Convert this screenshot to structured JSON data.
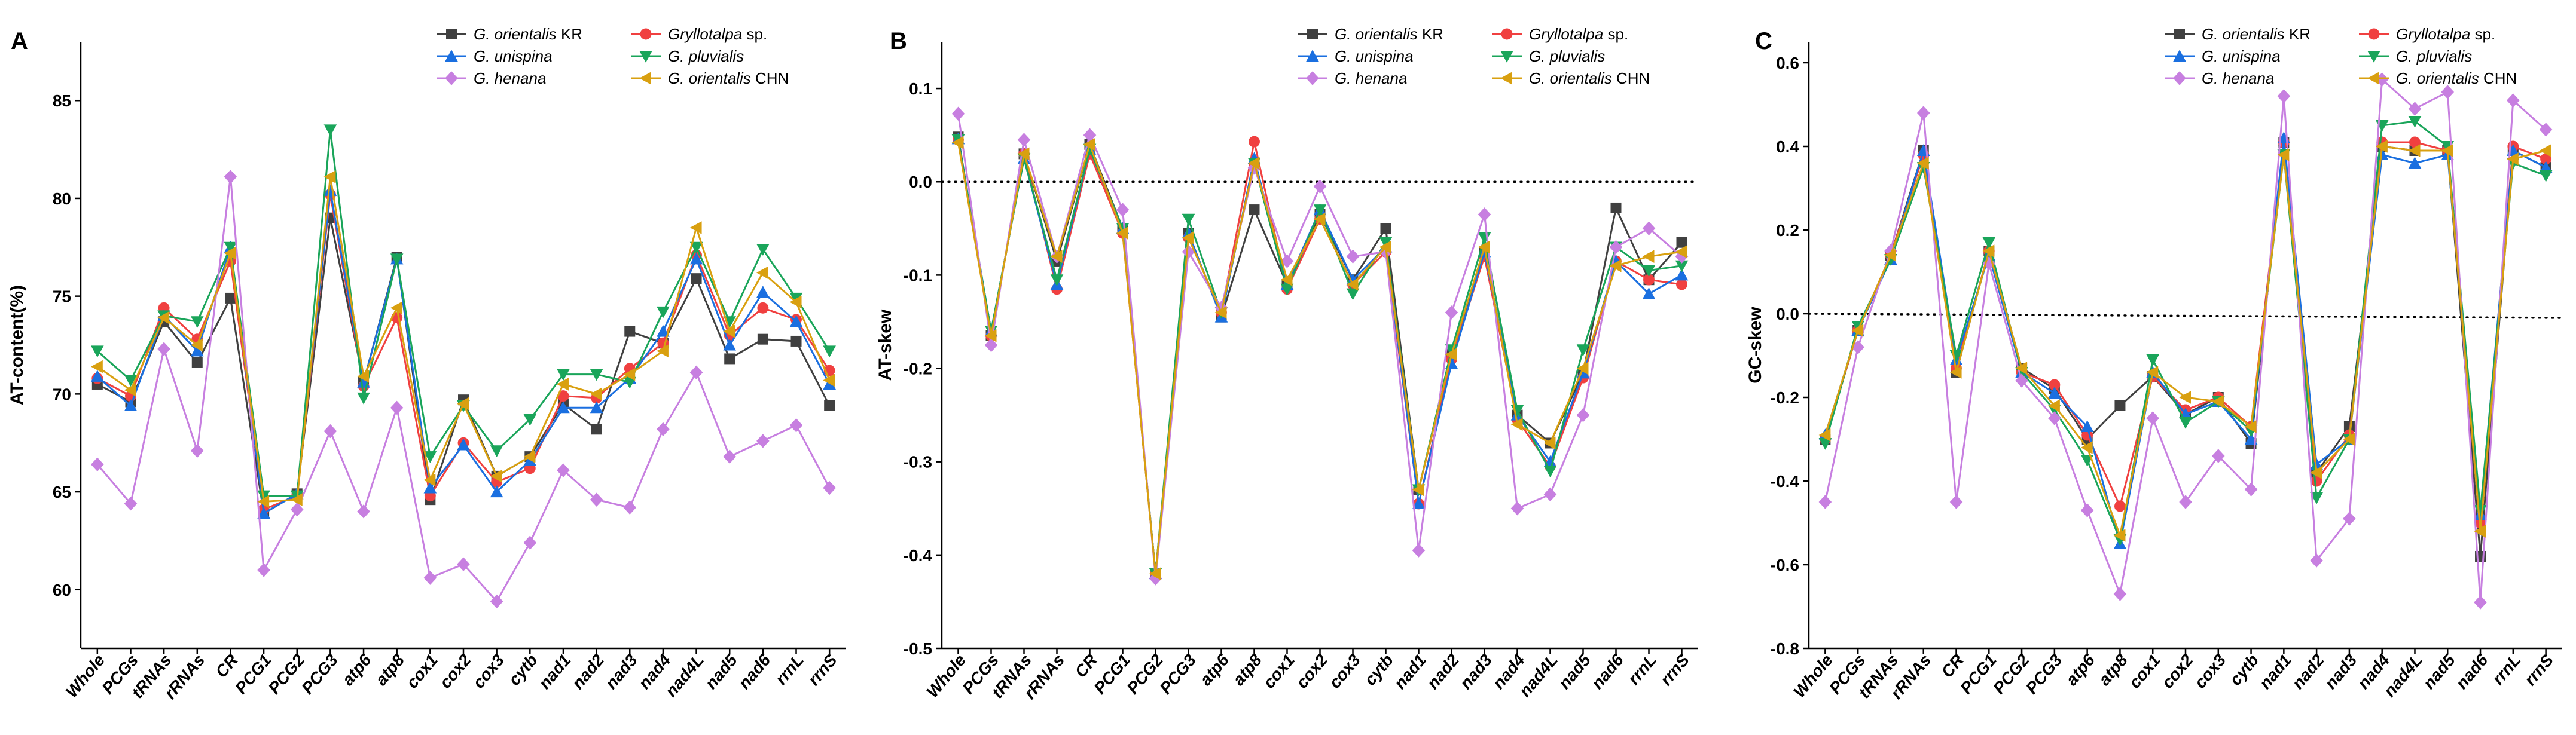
{
  "chart_data": [
    {
      "type": "line",
      "panel_label": "A",
      "title": "",
      "ylabel": "AT-content(%)",
      "xlabel": "",
      "ylim": [
        57,
        88
      ],
      "yticks": [
        60,
        65,
        70,
        75,
        80,
        85
      ],
      "ytick_labels": [
        "60",
        "65",
        "70",
        "75",
        "80",
        "85"
      ],
      "reference_line": null,
      "grid": false,
      "legend_position": "top-right",
      "categories": [
        "Whole",
        "PCGs",
        "tRNAs",
        "rRNAs",
        "CR",
        "PCG1",
        "PCG2",
        "PCG3",
        "atp6",
        "atp8",
        "cox1",
        "cox2",
        "cox3",
        "cytb",
        "nad1",
        "nad2",
        "nad3",
        "nad4",
        "nad4L",
        "nad5",
        "nad6",
        "rrnL",
        "rrnS"
      ],
      "series": [
        {
          "name": "G. orientalis KR",
          "legend_text": "G. orientalis",
          "legend_suffix": " KR",
          "color": "#404040",
          "marker": "square",
          "values": [
            70.5,
            69.6,
            73.7,
            71.6,
            74.9,
            63.9,
            64.9,
            79.0,
            70.6,
            77.0,
            64.6,
            69.7,
            65.8,
            66.8,
            69.5,
            68.2,
            73.2,
            72.6,
            75.9,
            71.8,
            72.8,
            72.7,
            69.4
          ]
        },
        {
          "name": "Gryllotalpa sp.",
          "legend_text": "Gryllotalpa",
          "legend_suffix": " sp.",
          "color": "#f04040",
          "marker": "circle",
          "values": [
            70.8,
            69.9,
            74.4,
            72.8,
            76.8,
            64.1,
            64.8,
            80.2,
            70.4,
            73.9,
            64.8,
            67.5,
            65.5,
            66.2,
            69.9,
            69.8,
            71.3,
            72.6,
            77.1,
            73.0,
            74.4,
            73.8,
            71.2
          ]
        },
        {
          "name": "G. unispina",
          "legend_text": "G. unispina",
          "legend_suffix": "",
          "color": "#1a6fe0",
          "marker": "triangle-up",
          "values": [
            70.9,
            69.4,
            74.0,
            72.2,
            77.5,
            63.9,
            64.9,
            80.4,
            70.6,
            76.9,
            65.2,
            67.4,
            65.0,
            66.6,
            69.3,
            69.3,
            70.8,
            73.2,
            76.9,
            72.5,
            75.2,
            73.7,
            70.5
          ]
        },
        {
          "name": "G. pluvialis",
          "legend_text": "G. pluvialis",
          "legend_suffix": "",
          "color": "#1aa55a",
          "marker": "triangle-down",
          "values": [
            72.2,
            70.7,
            74.0,
            73.7,
            77.5,
            64.8,
            64.8,
            83.5,
            69.8,
            76.9,
            66.8,
            69.4,
            67.1,
            68.7,
            71.0,
            71.0,
            70.6,
            74.2,
            77.5,
            73.7,
            77.4,
            74.9,
            72.2
          ]
        },
        {
          "name": "G. henana",
          "legend_text": "G. henana",
          "legend_suffix": "",
          "color": "#c77fe0",
          "marker": "diamond",
          "values": [
            66.4,
            64.4,
            72.3,
            67.1,
            81.1,
            61.0,
            64.1,
            68.1,
            64.0,
            69.3,
            60.6,
            61.3,
            59.4,
            62.4,
            66.1,
            64.6,
            64.2,
            68.2,
            71.1,
            66.8,
            67.6,
            68.4,
            65.2
          ]
        },
        {
          "name": "G. orientalis CHN",
          "legend_text": "G. orientalis",
          "legend_suffix": " CHN",
          "color": "#d9a010",
          "marker": "triangle-left",
          "values": [
            71.4,
            70.2,
            73.9,
            72.5,
            77.2,
            64.5,
            64.6,
            81.1,
            70.9,
            74.4,
            65.6,
            69.5,
            65.8,
            66.8,
            70.5,
            70.0,
            71.0,
            72.2,
            78.5,
            73.2,
            76.2,
            74.7,
            70.7
          ]
        }
      ]
    },
    {
      "type": "line",
      "panel_label": "B",
      "title": "",
      "ylabel": "AT-skew",
      "xlabel": "",
      "ylim": [
        -0.5,
        0.15
      ],
      "yticks": [
        -0.5,
        -0.4,
        -0.3,
        -0.2,
        -0.1,
        0.0,
        0.1
      ],
      "ytick_labels": [
        "-0.5",
        "-0.4",
        "-0.3",
        "-0.2",
        "-0.1",
        "0.0",
        "0.1"
      ],
      "reference_line": 0.0,
      "grid": false,
      "legend_position": "top-right",
      "categories": [
        "Whole",
        "PCGs",
        "tRNAs",
        "rRNAs",
        "CR",
        "PCG1",
        "PCG2",
        "PCG3",
        "atp6",
        "atp8",
        "cox1",
        "cox2",
        "cox3",
        "cytb",
        "nad1",
        "nad2",
        "nad3",
        "nad4",
        "nad4L",
        "nad5",
        "nad6",
        "rrnL",
        "rrnS"
      ],
      "series": [
        {
          "name": "G. orientalis KR",
          "legend_text": "G. orientalis",
          "legend_suffix": " KR",
          "color": "#404040",
          "marker": "square",
          "values": [
            0.048,
            -0.165,
            0.03,
            -0.085,
            0.04,
            -0.05,
            -0.42,
            -0.055,
            -0.145,
            -0.03,
            -0.11,
            -0.035,
            -0.105,
            -0.05,
            -0.33,
            -0.185,
            -0.075,
            -0.25,
            -0.28,
            -0.205,
            -0.028,
            -0.105,
            -0.065
          ]
        },
        {
          "name": "Gryllotalpa sp.",
          "legend_text": "Gryllotalpa",
          "legend_suffix": " sp.",
          "color": "#f04040",
          "marker": "circle",
          "values": [
            0.045,
            -0.165,
            0.03,
            -0.115,
            0.03,
            -0.055,
            -0.42,
            -0.06,
            -0.14,
            0.043,
            -0.115,
            -0.04,
            -0.11,
            -0.075,
            -0.345,
            -0.19,
            -0.08,
            -0.255,
            -0.305,
            -0.21,
            -0.085,
            -0.105,
            -0.11
          ]
        },
        {
          "name": "G. unispina",
          "legend_text": "G. unispina",
          "legend_suffix": "",
          "color": "#1a6fe0",
          "marker": "triangle-up",
          "values": [
            0.046,
            -0.16,
            0.025,
            -0.11,
            0.035,
            -0.05,
            -0.42,
            -0.055,
            -0.145,
            0.025,
            -0.11,
            -0.03,
            -0.105,
            -0.07,
            -0.345,
            -0.195,
            -0.075,
            -0.25,
            -0.3,
            -0.205,
            -0.085,
            -0.12,
            -0.1
          ]
        },
        {
          "name": "G. pluvialis",
          "legend_text": "G. pluvialis",
          "legend_suffix": "",
          "color": "#1aa55a",
          "marker": "triangle-down",
          "values": [
            0.045,
            -0.16,
            0.025,
            -0.105,
            0.035,
            -0.05,
            -0.42,
            -0.04,
            -0.14,
            0.02,
            -0.115,
            -0.03,
            -0.12,
            -0.065,
            -0.33,
            -0.18,
            -0.06,
            -0.245,
            -0.31,
            -0.18,
            -0.07,
            -0.095,
            -0.09
          ]
        },
        {
          "name": "G. henana",
          "legend_text": "G. henana",
          "legend_suffix": "",
          "color": "#c77fe0",
          "marker": "diamond",
          "values": [
            0.073,
            -0.175,
            0.045,
            -0.08,
            0.05,
            -0.03,
            -0.425,
            -0.075,
            -0.135,
            0.015,
            -0.085,
            -0.005,
            -0.08,
            -0.075,
            -0.395,
            -0.14,
            -0.035,
            -0.35,
            -0.335,
            -0.25,
            -0.07,
            -0.05,
            -0.08
          ]
        },
        {
          "name": "G. orientalis CHN",
          "legend_text": "G. orientalis",
          "legend_suffix": " CHN",
          "color": "#d9a010",
          "marker": "triangle-left",
          "values": [
            0.042,
            -0.165,
            0.03,
            -0.08,
            0.04,
            -0.055,
            -0.42,
            -0.06,
            -0.14,
            0.02,
            -0.105,
            -0.04,
            -0.11,
            -0.07,
            -0.33,
            -0.185,
            -0.07,
            -0.26,
            -0.28,
            -0.2,
            -0.09,
            -0.08,
            -0.075
          ]
        }
      ]
    },
    {
      "type": "line",
      "panel_label": "C",
      "title": "",
      "ylabel": "GC-skew",
      "xlabel": "",
      "ylim": [
        -0.8,
        0.65
      ],
      "yticks": [
        -0.8,
        -0.6,
        -0.4,
        -0.2,
        0.0,
        0.2,
        0.4,
        0.6
      ],
      "ytick_labels": [
        "-0.8",
        "-0.6",
        "-0.4",
        "-0.2",
        "0.0",
        "0.2",
        "0.4",
        "0.6"
      ],
      "reference_line": 0.0,
      "grid": false,
      "legend_position": "top-right",
      "categories": [
        "Whole",
        "PCGs",
        "tRNAs",
        "rRNAs",
        "CR",
        "PCG1",
        "PCG2",
        "PCG3",
        "atp6",
        "atp8",
        "cox1",
        "cox2",
        "cox3",
        "cytb",
        "nad1",
        "nad2",
        "nad3",
        "nad4",
        "nad4L",
        "nad5",
        "nad6",
        "rrnL",
        "rrnS"
      ],
      "series": [
        {
          "name": "G. orientalis KR",
          "legend_text": "G. orientalis",
          "legend_suffix": " KR",
          "color": "#404040",
          "marker": "square",
          "values": [
            -0.3,
            -0.04,
            0.14,
            0.39,
            -0.14,
            0.15,
            -0.13,
            -0.18,
            -0.3,
            -0.22,
            -0.15,
            -0.24,
            -0.2,
            -0.31,
            0.41,
            -0.38,
            -0.27,
            0.4,
            0.39,
            0.39,
            -0.58,
            0.39,
            0.35
          ]
        },
        {
          "name": "Gryllotalpa sp.",
          "legend_text": "Gryllotalpa",
          "legend_suffix": " sp.",
          "color": "#f04040",
          "marker": "circle",
          "values": [
            -0.3,
            -0.04,
            0.14,
            0.38,
            -0.13,
            0.15,
            -0.14,
            -0.17,
            -0.29,
            -0.46,
            -0.15,
            -0.23,
            -0.2,
            -0.27,
            0.41,
            -0.4,
            -0.29,
            0.41,
            0.41,
            0.39,
            -0.5,
            0.4,
            0.37
          ]
        },
        {
          "name": "G. unispina",
          "legend_text": "G. unispina",
          "legend_suffix": "",
          "color": "#1a6fe0",
          "marker": "triangle-up",
          "values": [
            -0.29,
            -0.04,
            0.13,
            0.39,
            -0.11,
            0.14,
            -0.14,
            -0.19,
            -0.27,
            -0.55,
            -0.14,
            -0.24,
            -0.21,
            -0.3,
            0.42,
            -0.36,
            -0.3,
            0.38,
            0.36,
            0.38,
            -0.48,
            0.39,
            0.35
          ]
        },
        {
          "name": "G. pluvialis",
          "legend_text": "G. pluvialis",
          "legend_suffix": "",
          "color": "#1aa55a",
          "marker": "triangle-down",
          "values": [
            -0.31,
            -0.03,
            0.13,
            0.35,
            -0.1,
            0.17,
            -0.14,
            -0.23,
            -0.35,
            -0.54,
            -0.11,
            -0.26,
            -0.21,
            -0.28,
            0.38,
            -0.44,
            -0.3,
            0.45,
            0.46,
            0.4,
            -0.47,
            0.36,
            0.33
          ]
        },
        {
          "name": "G. henana",
          "legend_text": "G. henana",
          "legend_suffix": "",
          "color": "#c77fe0",
          "marker": "diamond",
          "values": [
            -0.45,
            -0.08,
            0.15,
            0.48,
            -0.45,
            0.12,
            -0.16,
            -0.25,
            -0.47,
            -0.67,
            -0.25,
            -0.45,
            -0.34,
            -0.42,
            0.52,
            -0.59,
            -0.49,
            0.56,
            0.49,
            0.53,
            -0.69,
            0.51,
            0.44
          ]
        },
        {
          "name": "G. orientalis CHN",
          "legend_text": "G. orientalis",
          "legend_suffix": " CHN",
          "color": "#d9a010",
          "marker": "triangle-left",
          "values": [
            -0.29,
            -0.04,
            0.14,
            0.36,
            -0.14,
            0.15,
            -0.13,
            -0.22,
            -0.32,
            -0.53,
            -0.14,
            -0.2,
            -0.21,
            -0.27,
            0.38,
            -0.38,
            -0.3,
            0.4,
            0.39,
            0.39,
            -0.52,
            0.37,
            0.39
          ]
        }
      ]
    }
  ]
}
